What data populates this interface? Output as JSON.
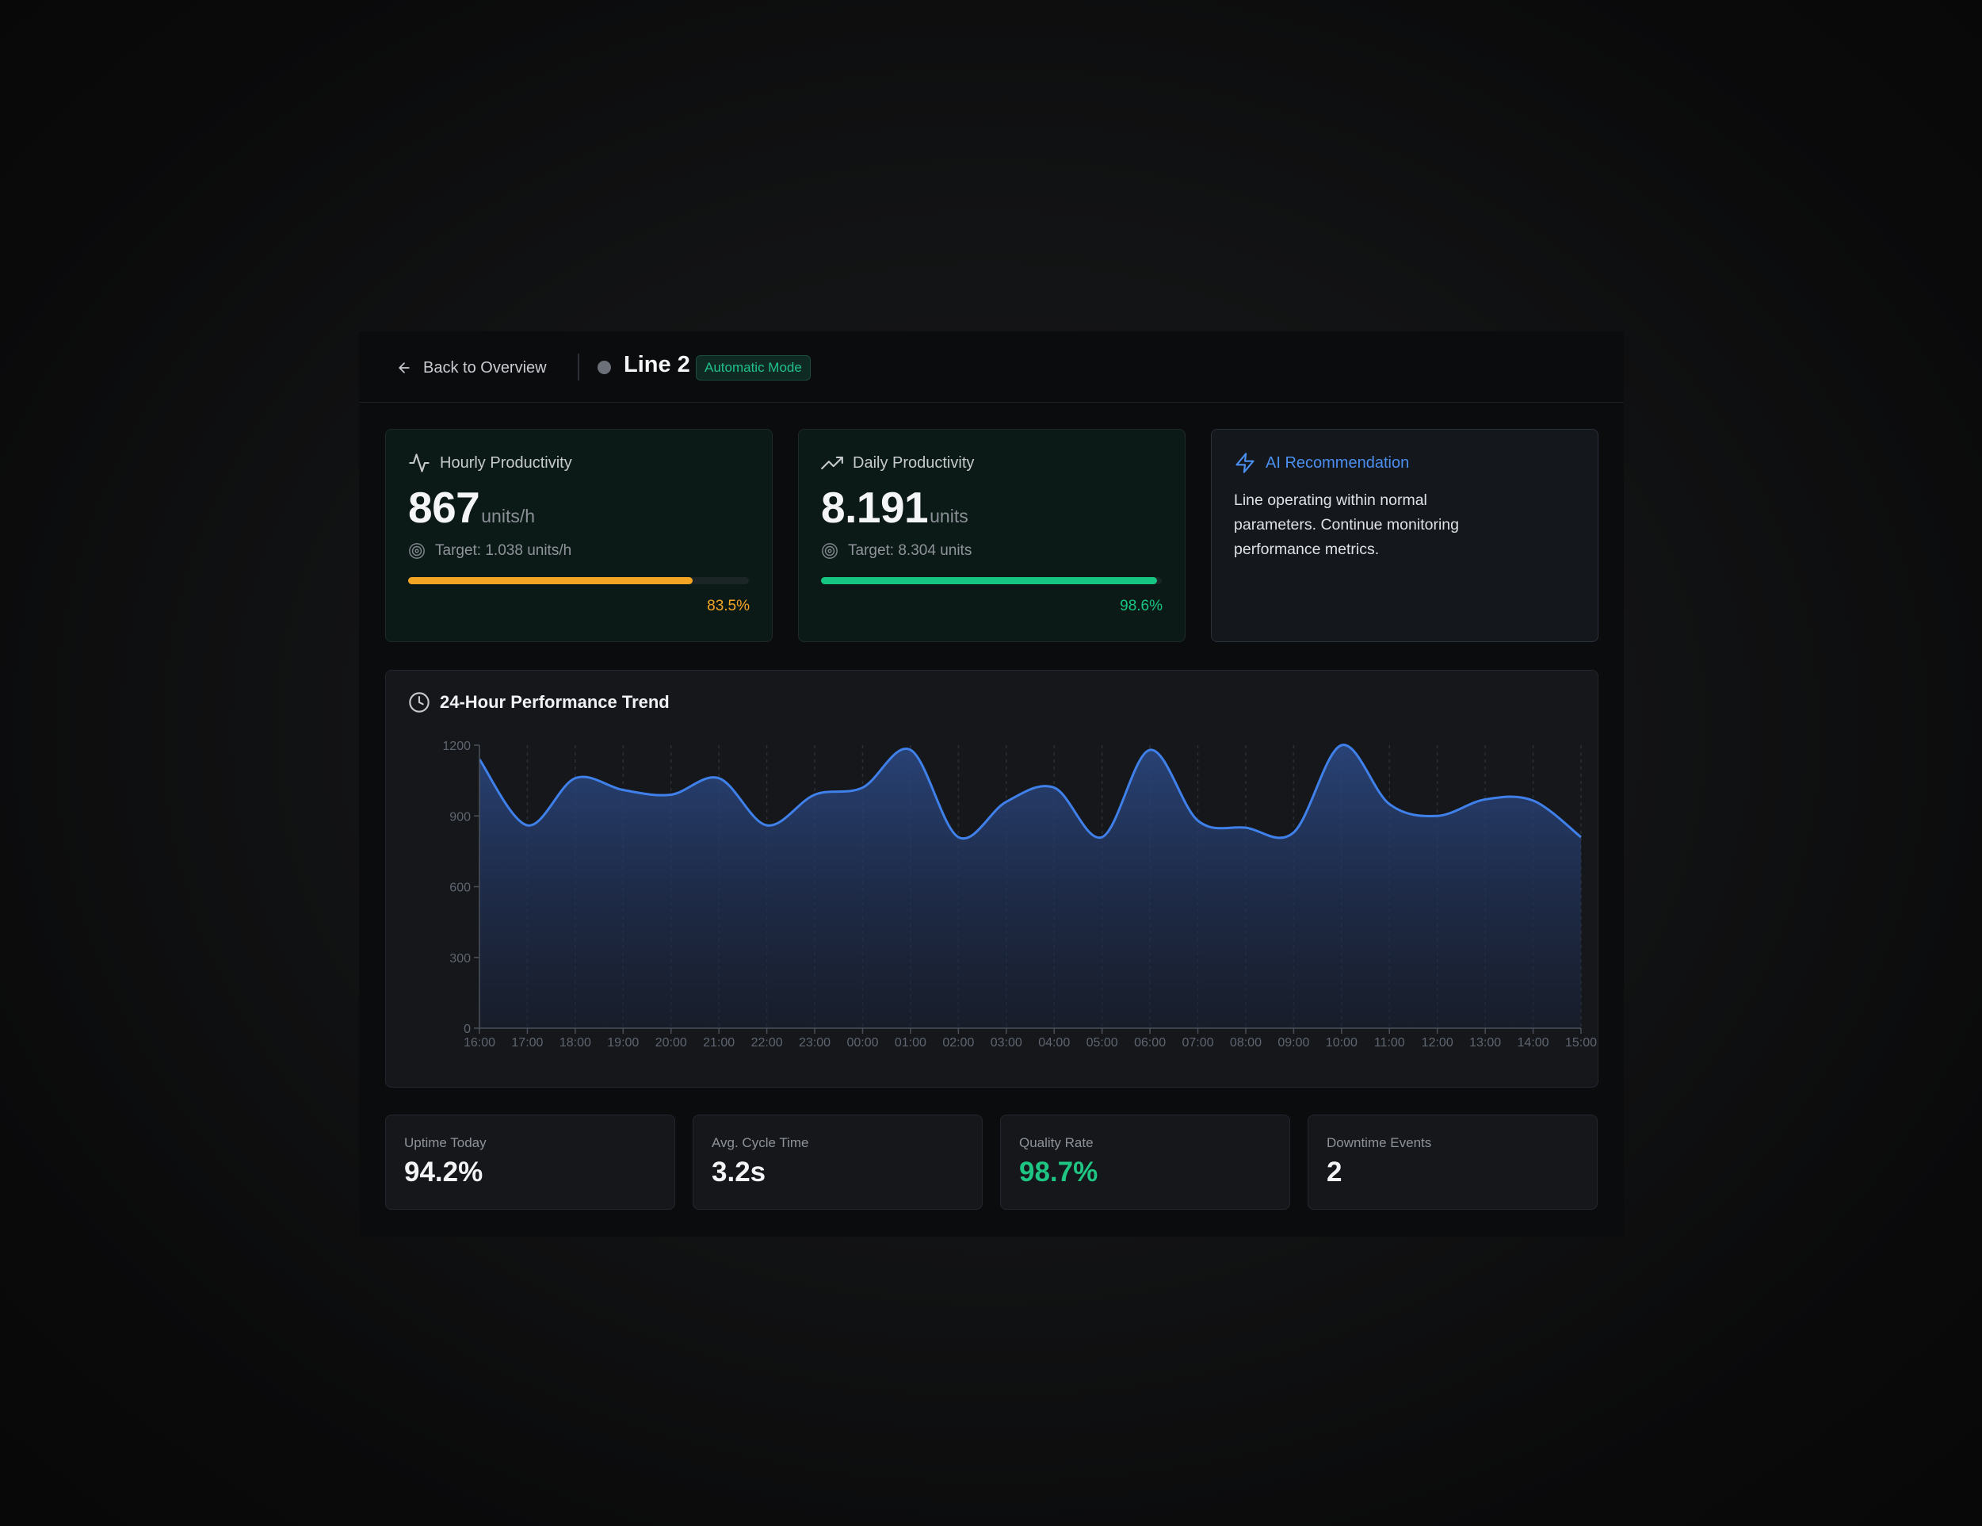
{
  "header": {
    "back_label": "Back to Overview",
    "line_name": "Line 2",
    "mode_badge": "Automatic Mode"
  },
  "kpis": {
    "hourly": {
      "title": "Hourly Productivity",
      "value": "867",
      "unit": "units/h",
      "target": "Target: 1.038 units/h",
      "percent_label": "83.5%",
      "progress": 0.835,
      "color": "#f5a524"
    },
    "daily": {
      "title": "Daily Productivity",
      "value": "8.191",
      "unit": "units",
      "target": "Target: 8.304 units",
      "percent_label": "98.6%",
      "progress": 0.986,
      "color": "#17c582"
    }
  },
  "ai": {
    "title": "AI Recommendation",
    "text": "Line operating within normal parameters. Continue monitoring performance metrics.",
    "accent": "#4b8ff0"
  },
  "trend": {
    "title": "24-Hour Performance Trend"
  },
  "chart_data": {
    "type": "area",
    "title": "24-Hour Performance Trend",
    "x": [
      "16:00",
      "17:00",
      "18:00",
      "19:00",
      "20:00",
      "21:00",
      "22:00",
      "23:00",
      "00:00",
      "01:00",
      "02:00",
      "03:00",
      "04:00",
      "05:00",
      "06:00",
      "07:00",
      "08:00",
      "09:00",
      "10:00",
      "11:00",
      "12:00",
      "13:00",
      "14:00",
      "15:00"
    ],
    "values": [
      1140,
      860,
      1060,
      1010,
      990,
      1060,
      860,
      990,
      1020,
      1180,
      810,
      960,
      1020,
      810,
      1180,
      880,
      850,
      830,
      1200,
      950,
      900,
      970,
      965,
      810
    ],
    "yticks": [
      0,
      300,
      600,
      900,
      1200
    ],
    "ylim": [
      0,
      1200
    ],
    "grid": true,
    "line_color": "#3f80ea"
  },
  "stats": [
    {
      "label": "Uptime Today",
      "value": "94.2%",
      "color": "#f3f4f6"
    },
    {
      "label": "Avg. Cycle Time",
      "value": "3.2s",
      "color": "#f3f4f6"
    },
    {
      "label": "Quality Rate",
      "value": "98.7%",
      "color": "#1fc583"
    },
    {
      "label": "Downtime Events",
      "value": "2",
      "color": "#f3f4f6"
    }
  ]
}
